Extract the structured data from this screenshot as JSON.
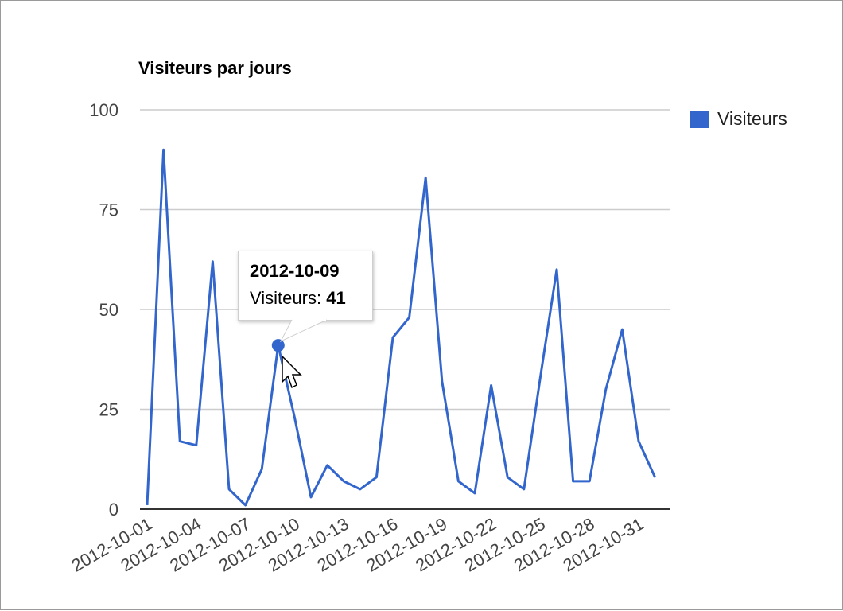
{
  "chart_data": {
    "type": "line",
    "title": "Visiteurs par jours",
    "xlabel": "",
    "ylabel": "",
    "ylim": [
      0,
      100
    ],
    "yticks": [
      0,
      25,
      50,
      75,
      100
    ],
    "x_tick_labels": [
      "2012-10-01",
      "2012-10-04",
      "2012-10-07",
      "2012-10-10",
      "2012-10-13",
      "2012-10-16",
      "2012-10-19",
      "2012-10-22",
      "2012-10-25",
      "2012-10-28",
      "2012-10-31"
    ],
    "x": [
      "2012-10-01",
      "2012-10-02",
      "2012-10-03",
      "2012-10-04",
      "2012-10-05",
      "2012-10-06",
      "2012-10-07",
      "2012-10-08",
      "2012-10-09",
      "2012-10-10",
      "2012-10-11",
      "2012-10-12",
      "2012-10-13",
      "2012-10-14",
      "2012-10-15",
      "2012-10-16",
      "2012-10-17",
      "2012-10-18",
      "2012-10-19",
      "2012-10-20",
      "2012-10-21",
      "2012-10-22",
      "2012-10-23",
      "2012-10-24",
      "2012-10-25",
      "2012-10-26",
      "2012-10-27",
      "2012-10-28",
      "2012-10-29",
      "2012-10-30",
      "2012-10-31",
      "2012-11-01"
    ],
    "series": [
      {
        "name": "Visiteurs",
        "color": "#3366cc",
        "values": [
          1,
          90,
          17,
          16,
          62,
          5,
          1,
          10,
          41,
          23,
          3,
          11,
          7,
          5,
          8,
          43,
          48,
          83,
          32,
          7,
          4,
          31,
          8,
          5,
          33,
          60,
          7,
          7,
          30,
          45,
          17,
          8
        ]
      }
    ],
    "legend": {
      "position": "right",
      "label": "Visiteurs"
    },
    "grid": true,
    "tooltip": {
      "date": "2012-10-09",
      "label": "Visiteurs:",
      "value": "41"
    }
  }
}
